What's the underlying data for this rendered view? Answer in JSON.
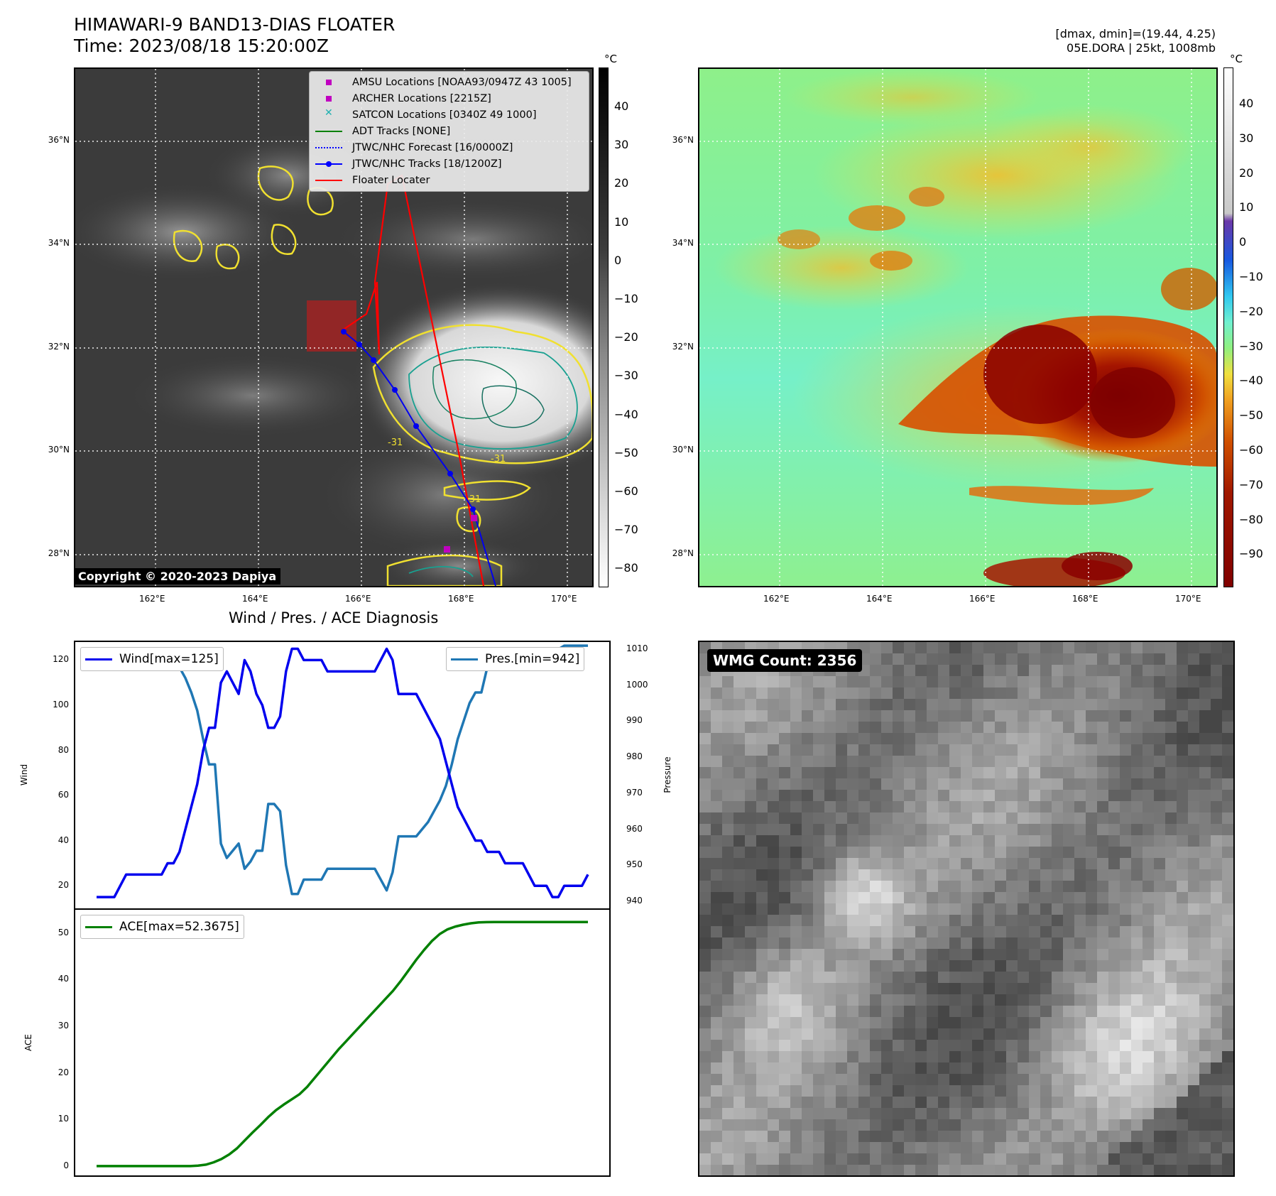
{
  "header": {
    "title": "HIMAWARI-9 BAND13-DIAS FLOATER",
    "time": "Time: 2023/08/18 15:20:00Z",
    "dmax_dmin": "[dmax, dmin]=(19.44, 4.25)",
    "storm": "05E.DORA | 25kt, 1008mb"
  },
  "ir_map": {
    "lat_labels": [
      "36°N",
      "34°N",
      "32°N",
      "30°N",
      "28°N"
    ],
    "lon_labels": [
      "162°E",
      "164°E",
      "166°E",
      "168°E",
      "170°E"
    ],
    "colorbar_unit": "°C",
    "colorbar_ticks": [
      "40",
      "30",
      "20",
      "10",
      "0",
      "−10",
      "−20",
      "−30",
      "−40",
      "−50",
      "−60",
      "−70",
      "−80"
    ],
    "copyright": "Copyright © 2020-2023 Dapiya",
    "legend": [
      {
        "label": "AMSU Locations [NOAA93/0947Z 43 1005]",
        "color": "#c000c0"
      },
      {
        "label": "ARCHER Locations [2215Z]",
        "color": "#c000c0"
      },
      {
        "label": "SATCON Locations [0340Z 49 1000]",
        "color": "#20b0b0"
      },
      {
        "label": "ADT Tracks [NONE]",
        "color": "#008000"
      },
      {
        "label": "JTWC/NHC Forecast [16/0000Z]",
        "color": "#0000ff"
      },
      {
        "label": "JTWC/NHC Tracks [18/1200Z]",
        "color": "#0000ff"
      },
      {
        "label": "Floater Locater",
        "color": "#ff0000"
      }
    ],
    "contour_labels": [
      "-31",
      "-31",
      "-31"
    ]
  },
  "color_map": {
    "lat_labels": [
      "36°N",
      "34°N",
      "32°N",
      "30°N",
      "28°N"
    ],
    "lon_labels": [
      "162°E",
      "164°E",
      "166°E",
      "168°E",
      "170°E"
    ],
    "colorbar_unit": "°C",
    "colorbar_ticks": [
      "40",
      "30",
      "20",
      "10",
      "0",
      "−10",
      "−20",
      "−30",
      "−40",
      "−50",
      "−60",
      "−70",
      "−80",
      "−90"
    ]
  },
  "diagnosis": {
    "title": "Wind / Pres. / ACE Diagnosis",
    "wind_legend": "Wind[max=125]",
    "pres_legend": "Pres.[min=942]",
    "ace_legend": "ACE[max=52.3675]",
    "wind_axis_label": "Wind",
    "pres_axis_label": "Pressure",
    "ace_axis_label": "ACE",
    "wind_ticks": [
      "120",
      "100",
      "80",
      "60",
      "40",
      "20"
    ],
    "pres_ticks": [
      "1010",
      "1000",
      "990",
      "980",
      "970",
      "960",
      "950",
      "940"
    ],
    "ace_ticks": [
      "50",
      "40",
      "30",
      "20",
      "10",
      "0"
    ]
  },
  "wmg": {
    "label": "WMG Count: 2356"
  },
  "chart_data": [
    {
      "type": "line",
      "title": "Wind / Pres. / ACE Diagnosis",
      "ylabel": "Wind",
      "y2label": "Pressure",
      "ylim": [
        10,
        128
      ],
      "y2lim": [
        938,
        1012
      ],
      "series": [
        {
          "name": "Wind[max=125]",
          "color": "#0000ee",
          "values": [
            15,
            15,
            15,
            15,
            20,
            25,
            25,
            25,
            25,
            25,
            25,
            25,
            30,
            30,
            35,
            45,
            55,
            65,
            80,
            90,
            90,
            110,
            115,
            110,
            105,
            120,
            115,
            105,
            100,
            90,
            90,
            95,
            115,
            125,
            125,
            120,
            120,
            120,
            120,
            115,
            115,
            115,
            115,
            115,
            115,
            115,
            115,
            115,
            120,
            125,
            120,
            105,
            105,
            105,
            105,
            100,
            95,
            90,
            85,
            75,
            65,
            55,
            50,
            45,
            40,
            40,
            35,
            35,
            35,
            30,
            30,
            30,
            30,
            25,
            20,
            20,
            20,
            15,
            15,
            20,
            20,
            20,
            20,
            25
          ]
        },
        {
          "name": "Pres.[min=942]",
          "color": "#1f77b4",
          "values": [
            1010,
            1010,
            1010,
            1010,
            1010,
            1009,
            1008,
            1008,
            1008,
            1008,
            1008,
            1008,
            1008,
            1007,
            1005,
            1002,
            998,
            993,
            985,
            978,
            978,
            956,
            952,
            954,
            956,
            949,
            951,
            954,
            954,
            967,
            967,
            965,
            950,
            942,
            942,
            946,
            946,
            946,
            946,
            949,
            949,
            949,
            949,
            949,
            949,
            949,
            949,
            949,
            946,
            943,
            948,
            958,
            958,
            958,
            958,
            960,
            962,
            965,
            968,
            972,
            978,
            985,
            990,
            995,
            998,
            998,
            1005,
            1005,
            1006,
            1007,
            1008,
            1008,
            1008,
            1006,
            1008,
            1009,
            1010,
            1010,
            1010,
            1011,
            1011,
            1011,
            1011,
            1011
          ]
        }
      ]
    },
    {
      "type": "line",
      "ylabel": "ACE",
      "ylim": [
        -2,
        55
      ],
      "series": [
        {
          "name": "ACE[max=52.3675]",
          "color": "#008000",
          "values": [
            0,
            0,
            0,
            0,
            0,
            0,
            0,
            0,
            0,
            0,
            0,
            0,
            0,
            0.1,
            0.3,
            0.8,
            1.5,
            2.5,
            3.8,
            5.5,
            7.2,
            8.8,
            10.5,
            12,
            13.2,
            14.3,
            15.4,
            17,
            19,
            21,
            23,
            25,
            26.8,
            28.6,
            30.4,
            32.2,
            34,
            35.8,
            37.6,
            39.7,
            42,
            44.3,
            46.4,
            48.3,
            49.8,
            50.8,
            51.4,
            51.8,
            52.1,
            52.3,
            52.35,
            52.37,
            52.37,
            52.37,
            52.37,
            52.37,
            52.37,
            52.37,
            52.37,
            52.37,
            52.37,
            52.37,
            52.37,
            52.37
          ]
        }
      ]
    }
  ]
}
